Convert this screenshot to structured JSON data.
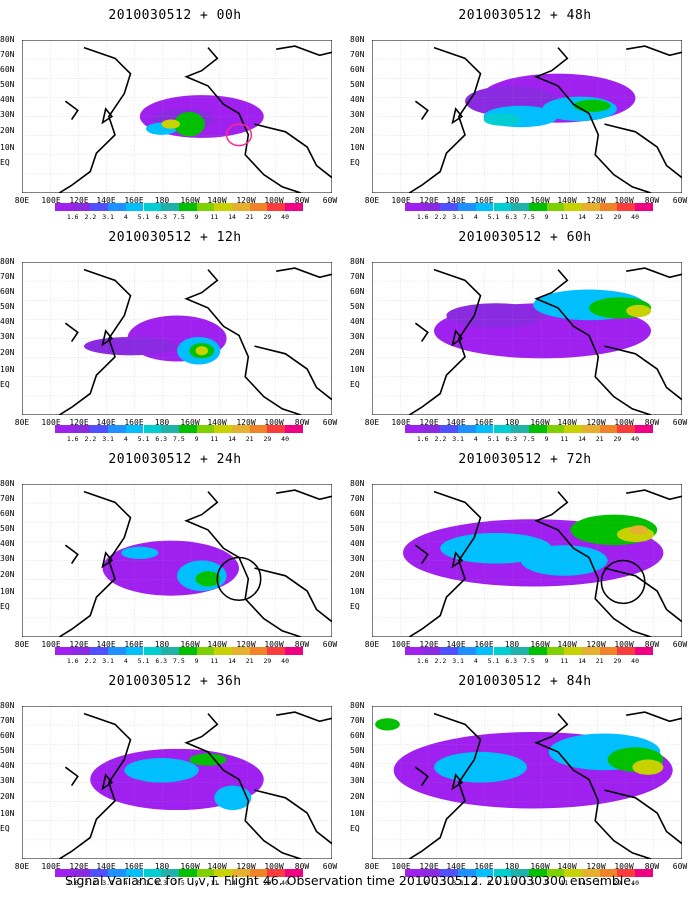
{
  "panels": [
    {
      "title": "2010030512 + 00h"
    },
    {
      "title": "2010030512 + 48h"
    },
    {
      "title": "2010030512 + 12h"
    },
    {
      "title": "2010030512 + 60h"
    },
    {
      "title": "2010030512 + 24h"
    },
    {
      "title": "2010030512 + 72h"
    },
    {
      "title": "2010030512 + 36h"
    },
    {
      "title": "2010030512 + 84h"
    }
  ],
  "lat_labels": [
    "80N",
    "70N",
    "60N",
    "50N",
    "40N",
    "30N",
    "20N",
    "10N",
    "EQ"
  ],
  "lon_labels": [
    "80E",
    "100E",
    "120E",
    "140E",
    "160E",
    "180",
    "160W",
    "140W",
    "120W",
    "100W",
    "80W",
    "60W"
  ],
  "colorbar": {
    "labels": [
      "1.6",
      "2.2",
      "3.1",
      "4",
      "5.1",
      "6.3",
      "7.5",
      "9",
      "11",
      "14",
      "21",
      "29",
      "40"
    ],
    "colors": [
      "#a020f0",
      "#8a2be2",
      "#5050ff",
      "#1e90ff",
      "#00bfff",
      "#00ced1",
      "#20b2aa",
      "#00c000",
      "#7fd000",
      "#c8d200",
      "#e6af2d",
      "#f08228",
      "#fa3c3c",
      "#f00082"
    ]
  },
  "caption": "Signal Variance for u,v,T. Flight 46. Observation time 2010030512. 2010030300 ensemble."
}
